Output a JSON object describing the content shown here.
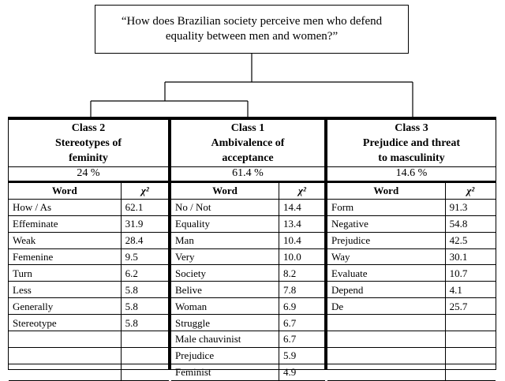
{
  "question": "“How does Brazilian society perceive men who defend equality between men and women?”",
  "classes": [
    {
      "id": "class-2",
      "name": "Class 2",
      "subtitle_line1": "Stereotypes of",
      "subtitle_line2": "feminity",
      "percent": "24 %",
      "col_word": "Word",
      "col_chi": "χ²",
      "rows": [
        [
          "How / As",
          "62.1"
        ],
        [
          "Effeminate",
          "31.9"
        ],
        [
          "Weak",
          "28.4"
        ],
        [
          "Femenine",
          "9.5"
        ],
        [
          "Turn",
          "6.2"
        ],
        [
          "Less",
          "5.8"
        ],
        [
          "Generally",
          "5.8"
        ],
        [
          "Stereotype",
          "5.8"
        ],
        [
          "",
          ""
        ],
        [
          "",
          ""
        ],
        [
          "",
          ""
        ]
      ]
    },
    {
      "id": "class-1",
      "name": "Class 1",
      "subtitle_line1": "Ambivalence of",
      "subtitle_line2": "acceptance",
      "percent": "61.4 %",
      "col_word": "Word",
      "col_chi": "χ²",
      "rows": [
        [
          "No / Not",
          "14.4"
        ],
        [
          "Equality",
          "13.4"
        ],
        [
          "Man",
          "10.4"
        ],
        [
          "Very",
          "10.0"
        ],
        [
          "Society",
          "8.2"
        ],
        [
          "Belive",
          "7.8"
        ],
        [
          "Woman",
          "6.9"
        ],
        [
          "Struggle",
          "6.7"
        ],
        [
          "Male chauvinist",
          "6.7"
        ],
        [
          "Prejudice",
          "5.9"
        ],
        [
          "Feminist",
          "4.9"
        ]
      ]
    },
    {
      "id": "class-3",
      "name": "Class 3",
      "subtitle_line1": "Prejudice and threat",
      "subtitle_line2": "to masculinity",
      "percent": "14.6 %",
      "col_word": "Word",
      "col_chi": "χ²",
      "rows": [
        [
          "Form",
          "91.3"
        ],
        [
          "Negative",
          "54.8"
        ],
        [
          "Prejudice",
          "42.5"
        ],
        [
          "Way",
          "30.1"
        ],
        [
          "Evaluate",
          "10.7"
        ],
        [
          "Depend",
          "4.1"
        ],
        [
          "De",
          "25.7"
        ],
        [
          "",
          ""
        ],
        [
          "",
          ""
        ],
        [
          "",
          ""
        ],
        [
          "",
          ""
        ]
      ]
    }
  ]
}
